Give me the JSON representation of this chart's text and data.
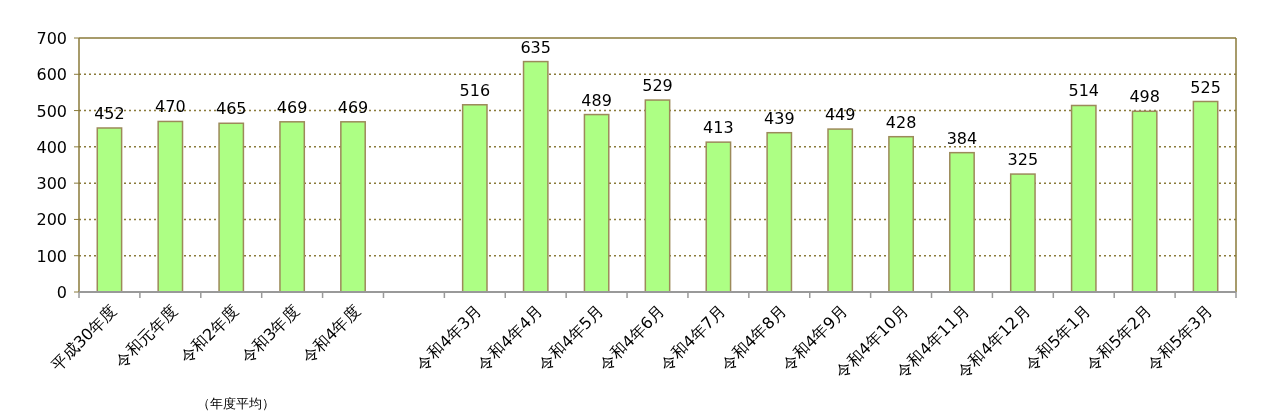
{
  "chart_data": {
    "type": "bar",
    "categories": [
      "平成30年度",
      "令和元年度",
      "令和2年度",
      "令和3年度",
      "令和4年度",
      null,
      "令和4年3月",
      "令和4年4月",
      "令和4年5月",
      "令和4年6月",
      "令和4年7月",
      "令和4年8月",
      "令和4年9月",
      "令和4年10月",
      "令和4年11月",
      "令和4年12月",
      "令和5年1月",
      "令和5年2月",
      "令和5年3月"
    ],
    "values": [
      452,
      470,
      465,
      469,
      469,
      null,
      516,
      635,
      489,
      529,
      413,
      439,
      449,
      428,
      384,
      325,
      514,
      498,
      525
    ],
    "color": "#adff84",
    "ylim": [
      0,
      700
    ],
    "yticks": [
      0,
      100,
      200,
      300,
      400,
      500,
      600,
      700
    ],
    "grid": "y",
    "data_labels": true,
    "annotations": [
      "（年度平均）"
    ]
  }
}
